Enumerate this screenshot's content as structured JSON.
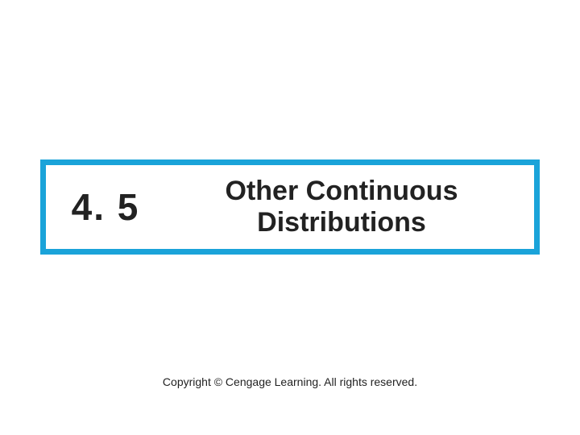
{
  "colors": {
    "border": "#1aa3d9",
    "text": "#222222",
    "background": "#ffffff"
  },
  "title_box": {
    "border_width": 7,
    "section_number": "4. 5",
    "section_number_fontsize": 46,
    "section_title": "Other Continuous Distributions",
    "section_title_fontsize": 34
  },
  "copyright": {
    "text": "Copyright © Cengage Learning. All rights reserved.",
    "fontsize": 14
  }
}
